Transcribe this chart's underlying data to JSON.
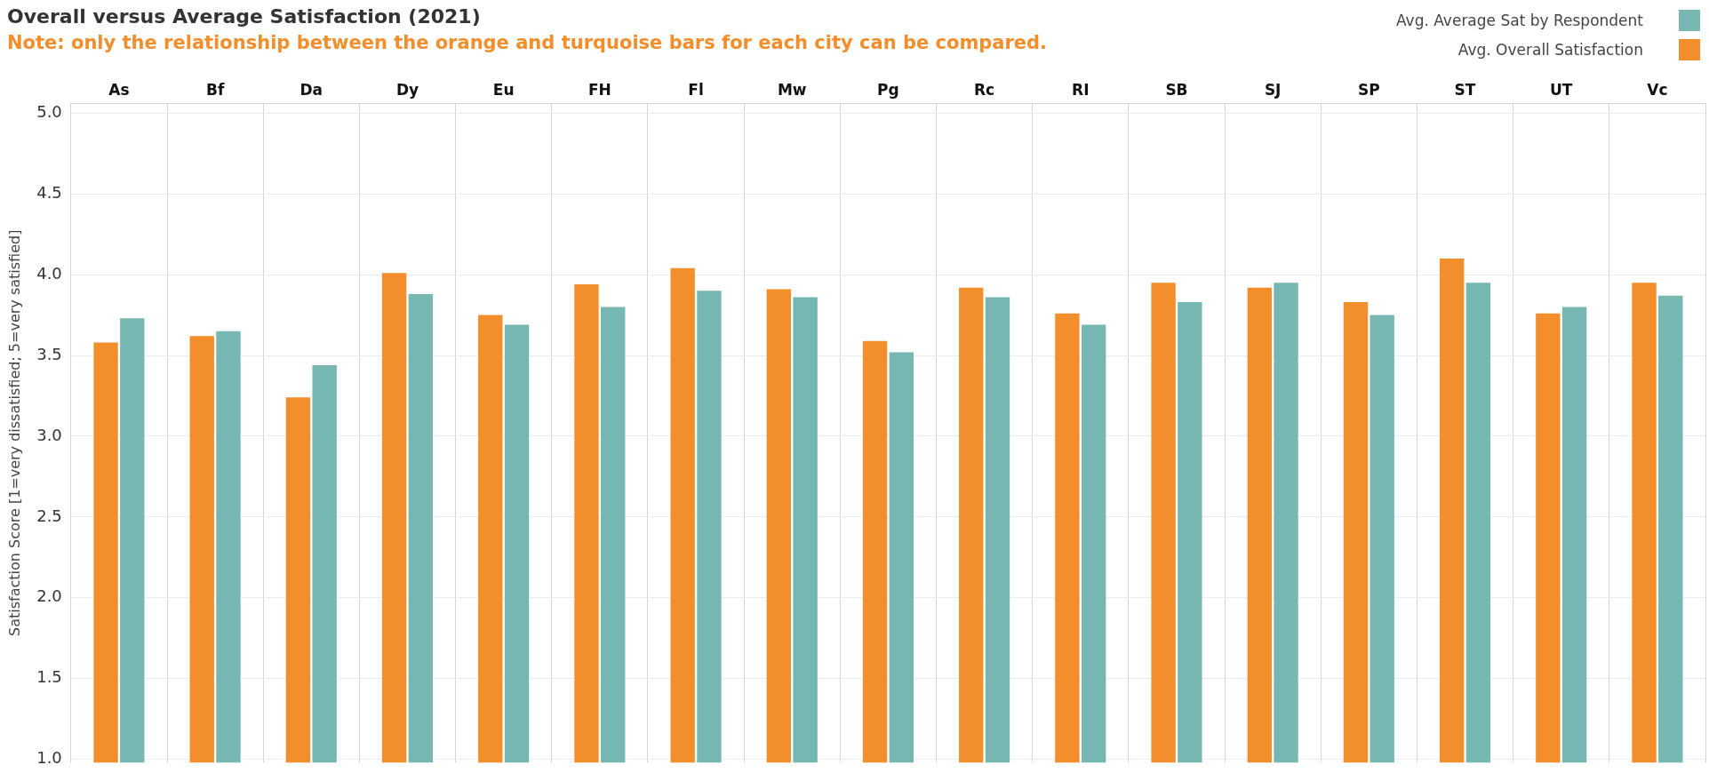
{
  "chart_data": {
    "type": "bar",
    "title": "Overall versus Average Satisfaction (2021)",
    "subtitle": "Note: only the relationship between the orange and turquoise bars for each city can be compared.",
    "ylabel": "Satisfaction Score [1=very dissatisfied; 5=very satisfied]",
    "categories": [
      "As",
      "Bf",
      "Da",
      "Dy",
      "Eu",
      "FH",
      "Fl",
      "Mw",
      "Pg",
      "Rc",
      "RI",
      "SB",
      "SJ",
      "SP",
      "ST",
      "UT",
      "Vc"
    ],
    "series": [
      {
        "name": "Avg. Overall Satisfaction",
        "color": "#f28e2b",
        "values": [
          3.58,
          3.62,
          3.24,
          4.01,
          3.75,
          3.94,
          4.04,
          3.91,
          3.59,
          3.92,
          3.76,
          3.95,
          3.92,
          3.83,
          4.1,
          3.76,
          3.95
        ]
      },
      {
        "name": "Avg. Average Sat by Respondent",
        "color": "#76b7b2",
        "values": [
          3.73,
          3.65,
          3.44,
          3.88,
          3.69,
          3.8,
          3.9,
          3.86,
          3.52,
          3.86,
          3.69,
          3.83,
          3.95,
          3.75,
          3.95,
          3.8,
          3.87
        ]
      }
    ],
    "ylim": [
      0.98,
      5.06
    ],
    "yticks": [
      {
        "value": 1,
        "label": "1.0"
      },
      {
        "value": 1.5,
        "label": "1.5"
      },
      {
        "value": 2,
        "label": "2.0"
      },
      {
        "value": 2.5,
        "label": "2.5"
      },
      {
        "value": 3,
        "label": "3.0"
      },
      {
        "value": 3.5,
        "label": "3.5"
      },
      {
        "value": 4,
        "label": "4.0"
      },
      {
        "value": 4.5,
        "label": "4.5"
      },
      {
        "value": 5,
        "label": "5.0"
      }
    ],
    "grid": true,
    "legend": "top right"
  }
}
